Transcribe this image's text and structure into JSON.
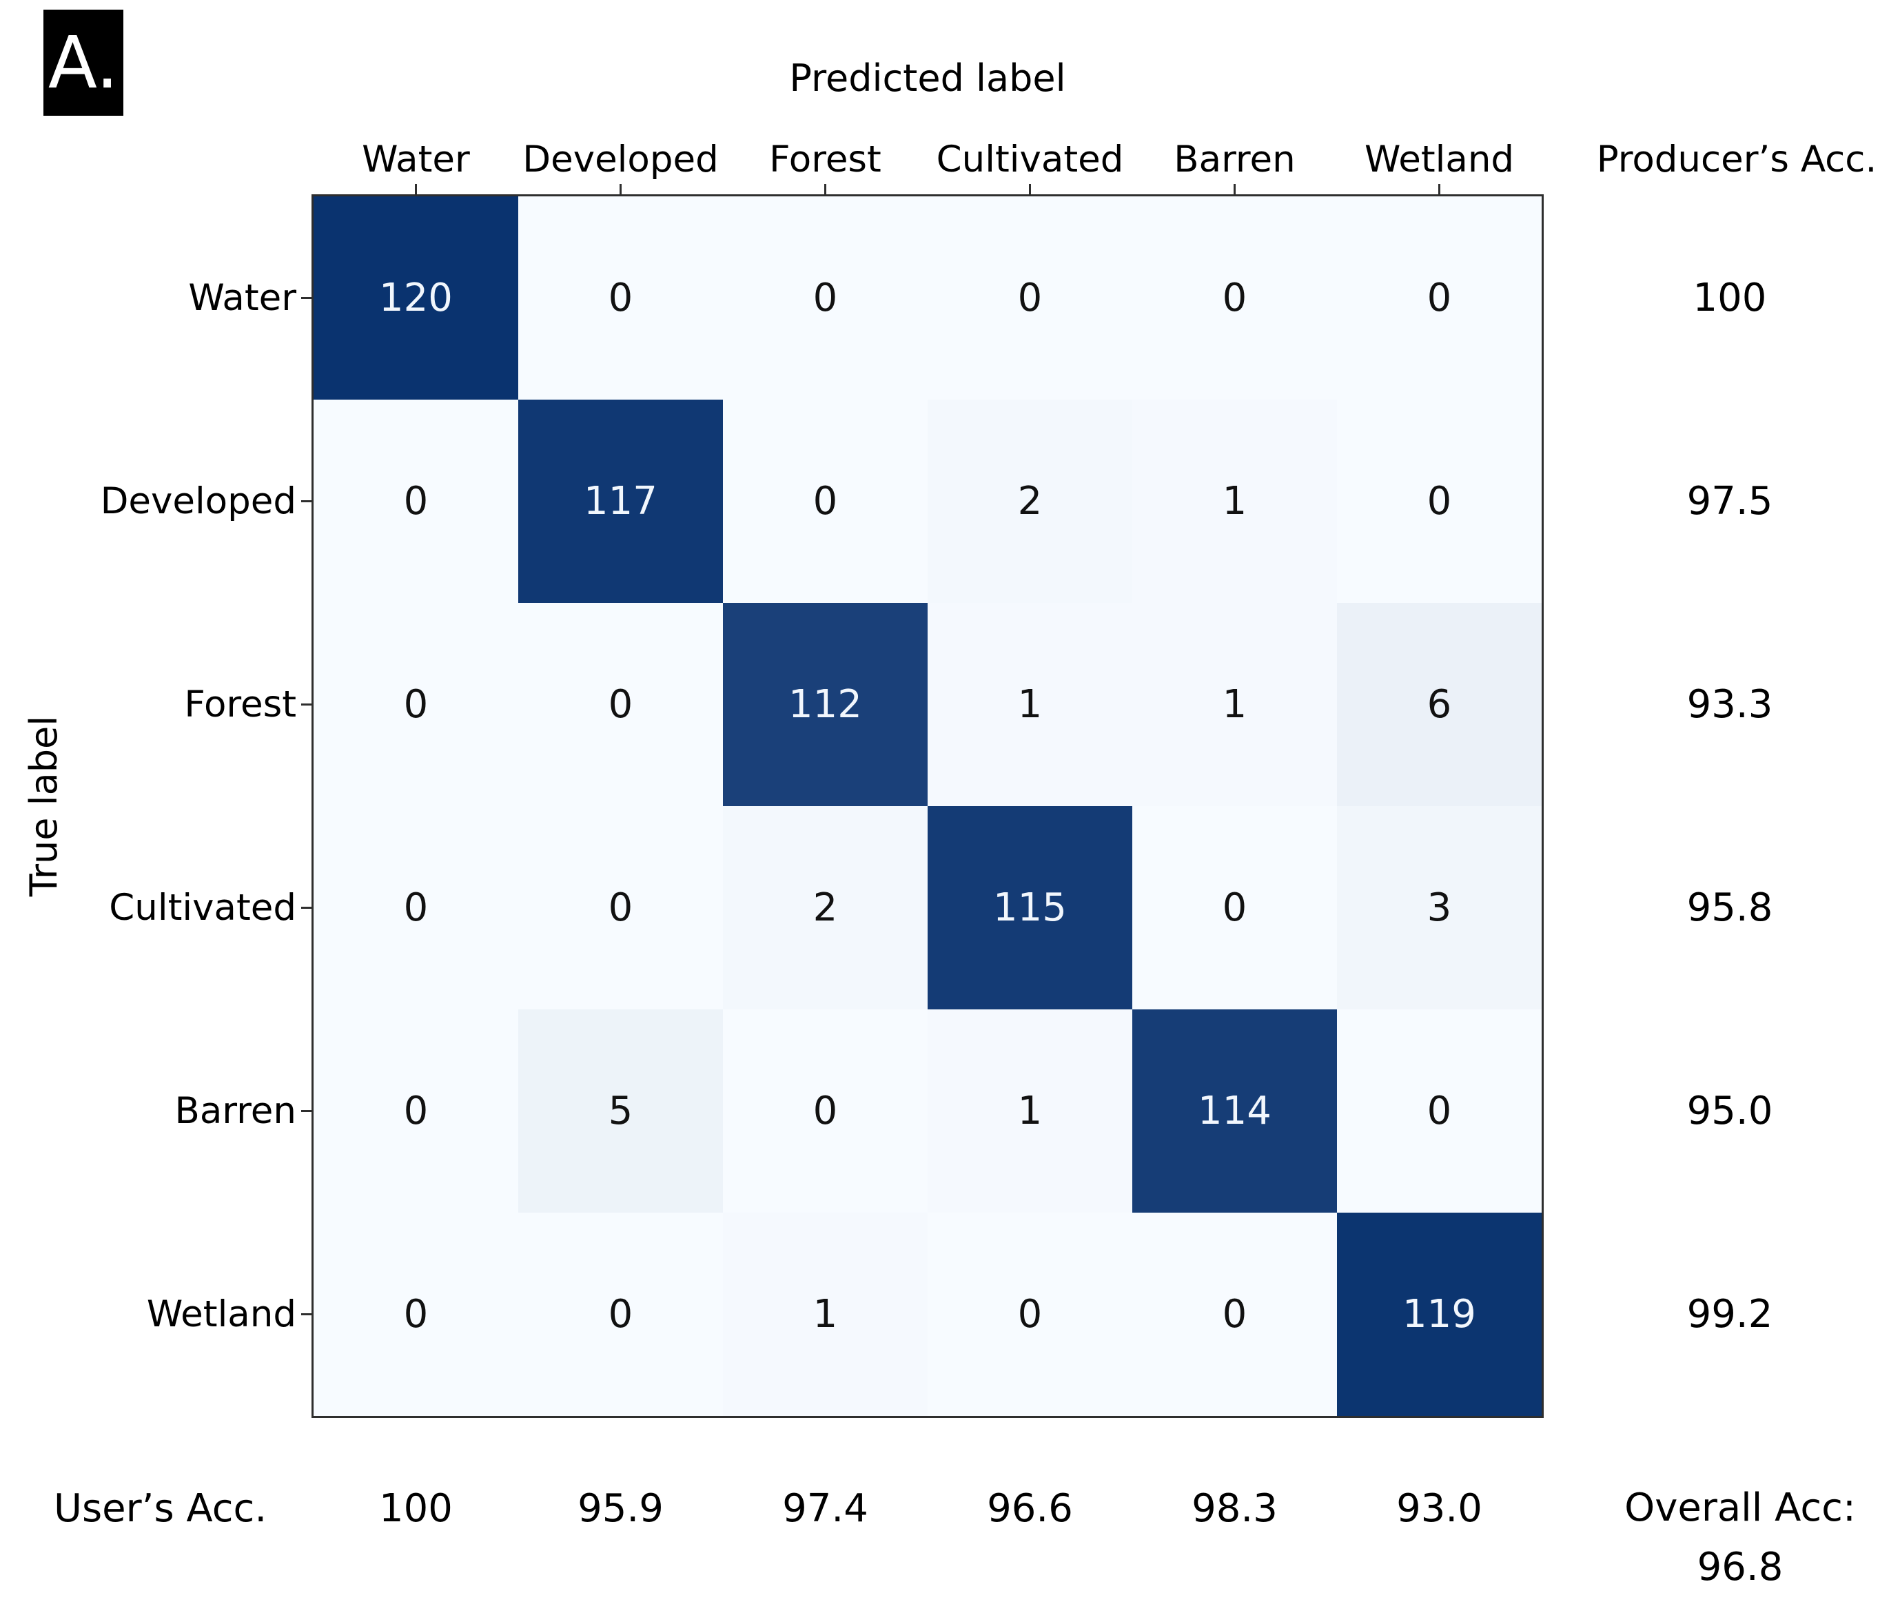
{
  "panel_label": "A.",
  "chart_data": {
    "type": "heatmap",
    "title": "Predicted label",
    "ylabel": "True label",
    "categories": [
      "Water",
      "Developed",
      "Forest",
      "Cultivated",
      "Barren",
      "Wetland"
    ],
    "matrix": [
      [
        120,
        0,
        0,
        0,
        0,
        0
      ],
      [
        0,
        117,
        0,
        2,
        1,
        0
      ],
      [
        0,
        0,
        112,
        1,
        1,
        6
      ],
      [
        0,
        0,
        2,
        115,
        0,
        3
      ],
      [
        0,
        5,
        0,
        1,
        114,
        0
      ],
      [
        0,
        0,
        1,
        0,
        0,
        119
      ]
    ],
    "producers_acc_label": "Producer’s Acc.",
    "producers_acc": [
      "100",
      "97.5",
      "93.3",
      "95.8",
      "95.0",
      "99.2"
    ],
    "users_acc_label": "User’s Acc.",
    "users_acc": [
      "100",
      "95.9",
      "97.4",
      "96.6",
      "98.3",
      "93.0"
    ],
    "overall_acc_label": "Overall Acc:",
    "overall_acc": "96.8",
    "colormap": {
      "min_color": "#f7fbff",
      "max_color": "#0a336f",
      "vmin": 0,
      "vmax": 120
    },
    "legend_position": "none",
    "grid": false
  }
}
